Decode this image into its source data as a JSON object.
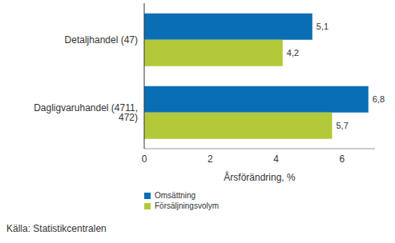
{
  "chart_data": {
    "type": "bar",
    "orientation": "horizontal",
    "categories": [
      "Detaljhandel (47)",
      "Dagligvaruhandel (4711, 472)"
    ],
    "series": [
      {
        "name": "Omsättning",
        "color": "#0a6eb4",
        "values": [
          5.1,
          6.8
        ],
        "value_labels": [
          "5,1",
          "6,8"
        ]
      },
      {
        "name": "Försäljningsvolym",
        "color": "#b4c93a",
        "values": [
          4.2,
          5.7
        ],
        "value_labels": [
          "4,2",
          "5,7"
        ]
      }
    ],
    "x_label": "Årsförändring, %",
    "xlim": [
      0,
      7
    ],
    "xticks": [
      0,
      2,
      4,
      6
    ],
    "grid": false,
    "data_labels": true,
    "legend": "bottom-left",
    "annotations": [
      "Källa: Statistikcentralen"
    ]
  }
}
